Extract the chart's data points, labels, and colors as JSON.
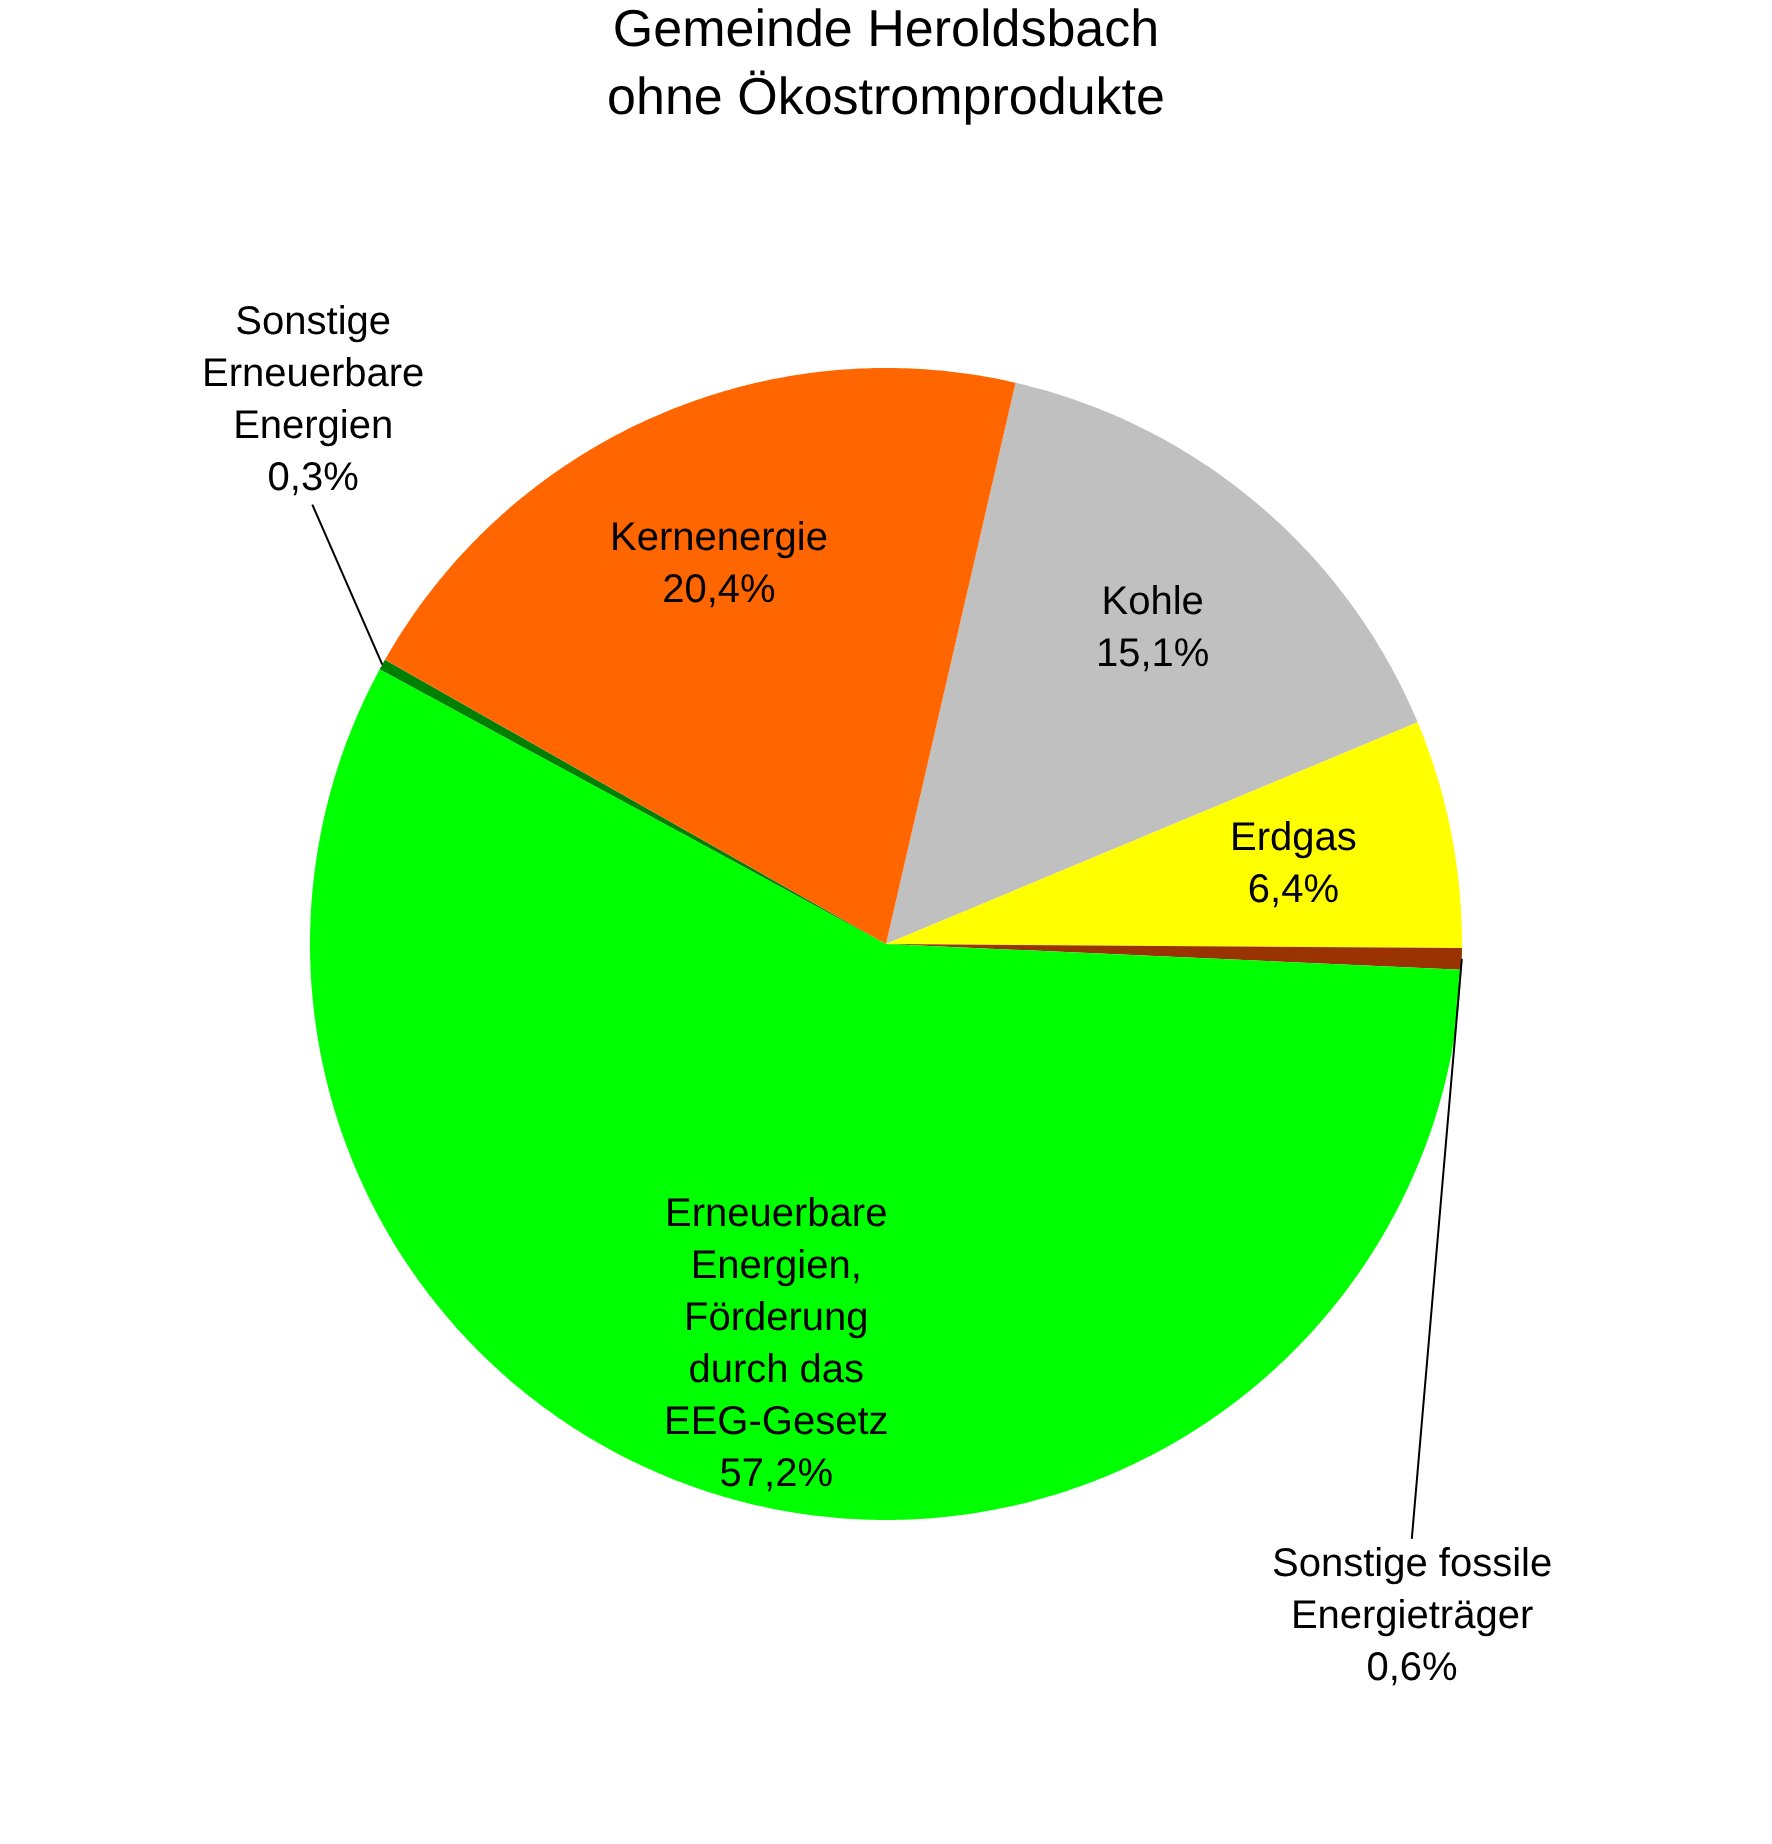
{
  "chart_data": {
    "type": "pie",
    "title": "Gemeinde Heroldsbach\nohne Ökostromprodukte",
    "categories": [
      "Kohle",
      "Erdgas",
      "Sonstige fossile Energieträger",
      "Erneuerbare Energien, Förderung durch das EEG-Gesetz",
      "Sonstige Erneuerbare Energien",
      "Kernenergie"
    ],
    "values": [
      15.1,
      6.4,
      0.6,
      57.2,
      0.3,
      20.4
    ],
    "value_labels": [
      "15,1%",
      "6,4%",
      "0,6%",
      "57,2%",
      "0,3%",
      "20,4%"
    ],
    "colors": [
      "#c0c0c0",
      "#ffff00",
      "#993300",
      "#00ff00",
      "#008000",
      "#ff6600"
    ],
    "legend": false
  }
}
